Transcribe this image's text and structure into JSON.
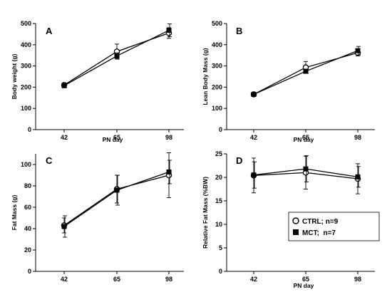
{
  "chart_data": [
    {
      "type": "line",
      "panel_label": "A",
      "categories": [
        "42",
        "65",
        "98"
      ],
      "xlabel": "PN day",
      "ylabel": "Body weight (g)",
      "ylim": [
        0,
        500
      ],
      "yticks": [
        "0",
        "100",
        "200",
        "300",
        "400",
        "500"
      ],
      "series": [
        {
          "name": "CTRL",
          "marker": "open-circle",
          "values": [
            210,
            368,
            455
          ],
          "errors": [
            10,
            35,
            25
          ]
        },
        {
          "name": "MCT",
          "marker": "filled-square",
          "values": [
            207,
            347,
            468
          ],
          "errors": [
            8,
            15,
            30
          ]
        }
      ]
    },
    {
      "type": "line",
      "panel_label": "B",
      "categories": [
        "42",
        "65",
        "98"
      ],
      "xlabel": "PN day",
      "ylabel": "Lean Body Mass (g)",
      "ylim": [
        0,
        500
      ],
      "yticks": [
        "0",
        "100",
        "200",
        "300",
        "400",
        "500"
      ],
      "series": [
        {
          "name": "CTRL",
          "marker": "open-circle",
          "values": [
            166,
            293,
            362
          ],
          "errors": [
            6,
            28,
            15
          ]
        },
        {
          "name": "MCT",
          "marker": "filled-square",
          "values": [
            166,
            275,
            372
          ],
          "errors": [
            6,
            10,
            20
          ]
        }
      ]
    },
    {
      "type": "line",
      "panel_label": "C",
      "categories": [
        "42",
        "65",
        "98"
      ],
      "xlabel": "",
      "ylabel": "Fat Mass (g)",
      "ylim": [
        0,
        110
      ],
      "yticks": [
        "0",
        "20",
        "40",
        "60",
        "80",
        "100"
      ],
      "series": [
        {
          "name": "CTRL",
          "marker": "open-circle",
          "values": [
            43,
            77,
            90
          ],
          "errors": [
            7,
            13,
            21
          ]
        },
        {
          "name": "MCT",
          "marker": "filled-square",
          "values": [
            42,
            76,
            93
          ],
          "errors": [
            10,
            14,
            11
          ]
        }
      ]
    },
    {
      "type": "line",
      "panel_label": "D",
      "categories": [
        "42",
        "65",
        "98"
      ],
      "xlabel": "PN day",
      "ylabel": "Relative Fat Mass (%BW)",
      "ylim": [
        0,
        25
      ],
      "yticks": [
        "0",
        "5",
        "10",
        "15",
        "20",
        "25"
      ],
      "series": [
        {
          "name": "CTRL",
          "marker": "open-circle",
          "values": [
            20.4,
            21.0,
            19.7
          ],
          "errors": [
            3.7,
            3.5,
            3.2
          ]
        },
        {
          "name": "MCT",
          "marker": "filled-square",
          "values": [
            20.5,
            21.8,
            20.1
          ],
          "errors": [
            2.8,
            2.8,
            2.2
          ]
        }
      ]
    }
  ],
  "legend": {
    "placement": "lower-right of panel D",
    "items": [
      {
        "marker": "open-circle",
        "label": "CTRL; n=9"
      },
      {
        "marker": "filled-square",
        "label": "MCT;  n=7"
      }
    ]
  },
  "colors": {
    "line": "#000000",
    "background": "#ffffff"
  }
}
